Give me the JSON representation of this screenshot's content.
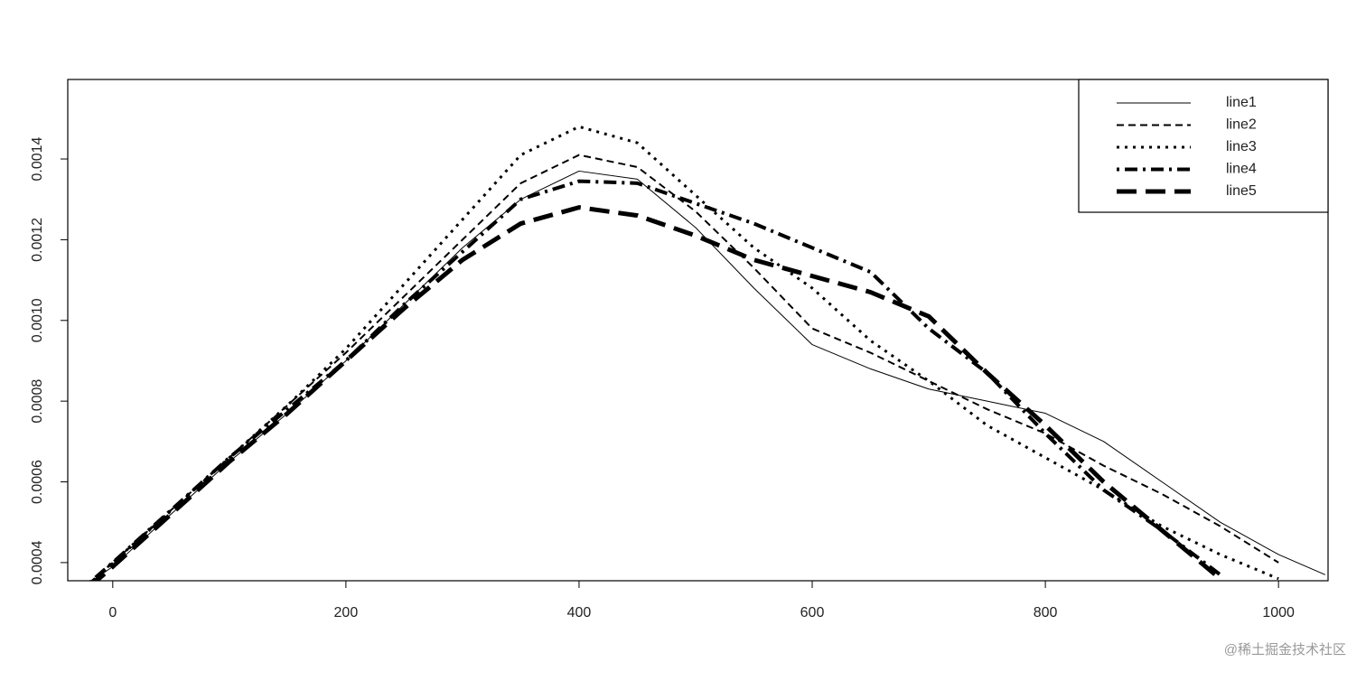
{
  "chart_data": {
    "type": "line",
    "x": [
      -20,
      0,
      50,
      100,
      150,
      200,
      250,
      300,
      350,
      400,
      450,
      500,
      550,
      600,
      650,
      700,
      750,
      800,
      850,
      900,
      950,
      1000,
      1040
    ],
    "series": [
      {
        "name": "line1",
        "color": "#000000",
        "linestyle": "solid",
        "linewidth": 1,
        "values": [
          0.00035,
          0.00039,
          0.00052,
          0.00065,
          0.00077,
          0.0009,
          0.00104,
          0.00118,
          0.0013,
          0.00137,
          0.00135,
          0.00123,
          0.00108,
          0.00094,
          0.00088,
          0.00083,
          0.0008,
          0.00077,
          0.0007,
          0.0006,
          0.0005,
          0.00042,
          0.00037
        ]
      },
      {
        "name": "line2",
        "color": "#000000",
        "linestyle": "dashed",
        "linewidth": 2,
        "values": [
          0.00035,
          0.0004,
          0.00053,
          0.00066,
          0.00079,
          0.00092,
          0.00106,
          0.0012,
          0.00134,
          0.00141,
          0.00138,
          0.00127,
          0.00113,
          0.00098,
          0.00092,
          0.00085,
          0.00078,
          0.00072,
          0.00064,
          0.00057,
          0.00049,
          0.0004,
          null
        ]
      },
      {
        "name": "line3",
        "color": "#000000",
        "linestyle": "dotted",
        "linewidth": 3,
        "values": [
          0.00035,
          0.0004,
          0.00053,
          0.00066,
          0.00079,
          0.00093,
          0.00109,
          0.00125,
          0.00141,
          0.00148,
          0.00144,
          0.00131,
          0.00118,
          0.00108,
          0.00095,
          0.00085,
          0.00074,
          0.00066,
          0.00058,
          0.00049,
          0.00042,
          0.00036,
          null
        ]
      },
      {
        "name": "line4",
        "color": "#000000",
        "linestyle": "dotdash",
        "linewidth": 4,
        "values": [
          0.00035,
          0.0004,
          0.00053,
          0.00066,
          0.00078,
          0.0009,
          0.00104,
          0.00117,
          0.0013,
          0.001345,
          0.00134,
          0.00129,
          0.00124,
          0.00118,
          0.00112,
          0.00098,
          0.00087,
          0.00072,
          0.00058,
          0.00048,
          0.00037,
          null,
          null
        ]
      },
      {
        "name": "line5",
        "color": "#000000",
        "linestyle": "longdash",
        "linewidth": 5,
        "values": [
          0.00034,
          0.00039,
          0.00052,
          0.00065,
          0.00077,
          0.0009,
          0.00103,
          0.00115,
          0.00124,
          0.00128,
          0.00126,
          0.00121,
          0.00115,
          0.00111,
          0.00107,
          0.00101,
          0.00087,
          0.00074,
          0.0006,
          0.00048,
          0.00036,
          null,
          null
        ]
      }
    ],
    "xlim": [
      -38.6,
      1042.5
    ],
    "xticks": [
      0,
      200,
      400,
      600,
      800,
      1000
    ],
    "ylim": [
      0.000355,
      0.001597
    ],
    "yticks": [
      0.0004,
      0.0006,
      0.0008,
      {
        "value": 0.001,
        "label": "0.0010"
      },
      0.0012,
      0.0014
    ],
    "grid": false,
    "legend": "top-right"
  },
  "watermark": "@稀土掘金技术社区"
}
